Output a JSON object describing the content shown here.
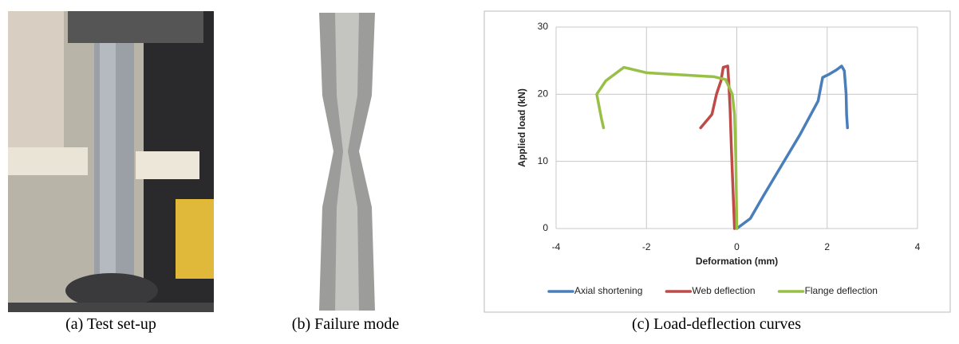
{
  "captions": [
    "(a) Test set-up",
    "(b) Failure mode",
    "(c) Load-deflection curves"
  ],
  "chart_data": {
    "type": "line",
    "xlabel": "Deformation (mm)",
    "ylabel": "Applied load (kN)",
    "xlim": [
      -4,
      4
    ],
    "xticks": [
      -4,
      -2,
      0,
      2,
      4
    ],
    "ylim": [
      0,
      30
    ],
    "yticks": [
      0,
      10,
      20,
      30
    ],
    "grid": true,
    "legend": "bottom",
    "series": [
      {
        "name": "Axial shortening",
        "color": "#4a7ebb",
        "x": [
          0,
          0.3,
          0.6,
          1.0,
          1.4,
          1.8,
          1.9,
          2.05,
          2.2,
          2.32,
          2.38,
          2.42,
          2.43,
          2.45
        ],
        "values": [
          0,
          1.5,
          5,
          9.5,
          14,
          19,
          22.5,
          23,
          23.6,
          24.2,
          23.5,
          20,
          17,
          15
        ]
      },
      {
        "name": "Web deflection",
        "color": "#be4b48",
        "x": [
          -0.8,
          -0.55,
          -0.45,
          -0.35,
          -0.3,
          -0.2,
          -0.18,
          -0.15,
          -0.12,
          -0.08,
          -0.05
        ],
        "values": [
          15,
          17,
          20,
          22,
          24,
          24.2,
          22,
          18,
          12,
          5,
          0
        ]
      },
      {
        "name": "Flange deflection",
        "color": "#98c047",
        "x": [
          -2.95,
          -3.0,
          -3.1,
          -2.9,
          -2.7,
          -2.5,
          -2.0,
          -1.0,
          -0.5,
          -0.25,
          -0.1,
          -0.05,
          -0.02,
          0
        ],
        "values": [
          15,
          16.5,
          20,
          22,
          23,
          24,
          23.2,
          22.8,
          22.6,
          22.2,
          20,
          17,
          10,
          0
        ]
      }
    ]
  }
}
